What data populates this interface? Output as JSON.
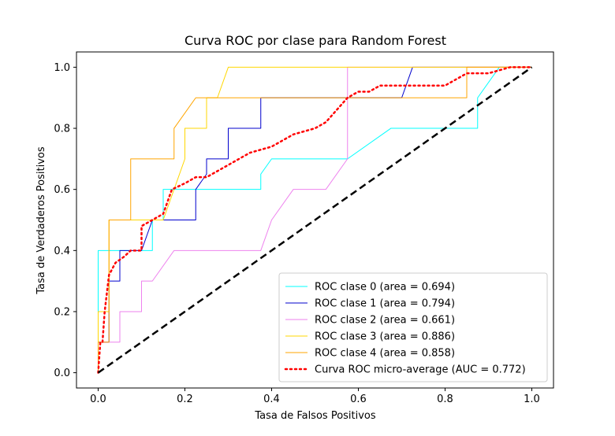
{
  "chart_data": {
    "type": "line",
    "title": "Curva ROC por clase para Random Forest",
    "xlabel": "Tasa de Falsos Positivos",
    "ylabel": "Tasa de Verdaderos Positivos",
    "xlim": [
      -0.05,
      1.05
    ],
    "ylim": [
      -0.05,
      1.05
    ],
    "xticks": [
      0.0,
      0.2,
      0.4,
      0.6,
      0.8,
      1.0
    ],
    "yticks": [
      0.0,
      0.2,
      0.4,
      0.6,
      0.8,
      1.0
    ],
    "xtick_labels": [
      "0.0",
      "0.2",
      "0.4",
      "0.6",
      "0.8",
      "1.0"
    ],
    "ytick_labels": [
      "0.0",
      "0.2",
      "0.4",
      "0.6",
      "0.8",
      "1.0"
    ],
    "grid": false,
    "legend_position": "bottom-right",
    "series": [
      {
        "name": "ROC clase 0 (area = 0.694)",
        "color": "#00ffff",
        "dash": "solid",
        "x": [
          0,
          0,
          0,
          0.125,
          0.125,
          0.15,
          0.15,
          0.375,
          0.375,
          0.4,
          0.4,
          0.575,
          0.575,
          0.675,
          0.675,
          0.875,
          0.875,
          0.925,
          1
        ],
        "y": [
          0,
          0.3,
          0.4,
          0.4,
          0.5,
          0.5,
          0.6,
          0.6,
          0.65,
          0.7,
          0.7,
          0.7,
          0.7,
          0.8,
          0.8,
          0.8,
          0.9,
          1,
          1
        ]
      },
      {
        "name": "ROC clase 1 (area = 0.794)",
        "color": "#0000cd",
        "dash": "solid",
        "x": [
          0,
          0,
          0.025,
          0.025,
          0.05,
          0.05,
          0.1,
          0.125,
          0.125,
          0.225,
          0.225,
          0.25,
          0.25,
          0.3,
          0.3,
          0.375,
          0.375,
          0.7,
          0.725,
          1
        ],
        "y": [
          0,
          0.1,
          0.1,
          0.3,
          0.3,
          0.4,
          0.4,
          0.5,
          0.5,
          0.5,
          0.6,
          0.65,
          0.7,
          0.7,
          0.8,
          0.8,
          0.9,
          0.9,
          1,
          1
        ]
      },
      {
        "name": "ROC clase 2 (area = 0.661)",
        "color": "#ee82ee",
        "dash": "solid",
        "x": [
          0,
          0,
          0.05,
          0.05,
          0.1,
          0.1,
          0.125,
          0.175,
          0.375,
          0.4,
          0.45,
          0.525,
          0.575,
          0.575,
          0.575,
          1
        ],
        "y": [
          0,
          0.1,
          0.1,
          0.2,
          0.2,
          0.3,
          0.3,
          0.4,
          0.4,
          0.5,
          0.6,
          0.6,
          0.7,
          0.9,
          1,
          1
        ]
      },
      {
        "name": "ROC clase 3 (area = 0.886)",
        "color": "#ffd700",
        "dash": "solid",
        "x": [
          0,
          0,
          0.025,
          0.025,
          0.15,
          0.2,
          0.2,
          0.25,
          0.25,
          0.275,
          0.3,
          1
        ],
        "y": [
          0,
          0.2,
          0.2,
          0.5,
          0.5,
          0.7,
          0.8,
          0.8,
          0.9,
          0.9,
          1,
          1
        ]
      },
      {
        "name": "ROC clase 4 (area = 0.858)",
        "color": "#ffa500",
        "dash": "solid",
        "x": [
          0,
          0,
          0.025,
          0.025,
          0.075,
          0.075,
          0.175,
          0.175,
          0.225,
          0.85,
          0.85,
          1
        ],
        "y": [
          0,
          0.1,
          0.1,
          0.5,
          0.5,
          0.7,
          0.7,
          0.8,
          0.9,
          0.9,
          1,
          1
        ]
      },
      {
        "name": "Curva ROC micro-average (AUC = 0.772)",
        "color": "#ff0000",
        "dash": "dotted",
        "x": [
          0,
          0.005,
          0.01,
          0.015,
          0.025,
          0.04,
          0.06,
          0.075,
          0.1,
          0.1,
          0.125,
          0.15,
          0.17,
          0.2,
          0.225,
          0.25,
          0.275,
          0.3,
          0.325,
          0.35,
          0.4,
          0.45,
          0.5,
          0.525,
          0.55,
          0.575,
          0.6,
          0.625,
          0.65,
          0.7,
          0.8,
          0.825,
          0.85,
          0.9,
          0.95,
          1
        ],
        "y": [
          0,
          0.1,
          0.1,
          0.2,
          0.32,
          0.36,
          0.38,
          0.4,
          0.4,
          0.48,
          0.5,
          0.52,
          0.6,
          0.62,
          0.64,
          0.64,
          0.66,
          0.68,
          0.7,
          0.72,
          0.74,
          0.78,
          0.8,
          0.82,
          0.86,
          0.9,
          0.92,
          0.92,
          0.94,
          0.94,
          0.94,
          0.96,
          0.98,
          0.98,
          1,
          1
        ]
      },
      {
        "name": "",
        "color": "#000000",
        "dash": "dashed",
        "x": [
          0,
          1
        ],
        "y": [
          0,
          1
        ]
      }
    ]
  }
}
